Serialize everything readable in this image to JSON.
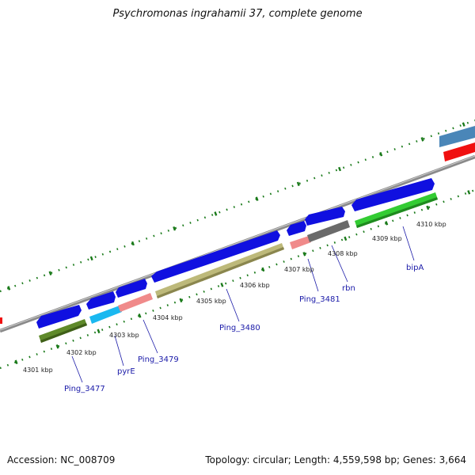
{
  "title": "Psychromonas ingrahamii 37, complete genome",
  "footer": {
    "accession": "Accession: NC_008709",
    "stats": "Topology: circular; Length: 4,559,598 bp; Genes: 3,664"
  },
  "kbp_labels": [
    "4301 kbp",
    "4302 kbp",
    "4303 kbp",
    "4304 kbp",
    "4305 kbp",
    "4306 kbp",
    "4307 kbp",
    "4308 kbp",
    "4309 kbp",
    "4310 kbp"
  ],
  "gene_labels": [
    "Ping_3477",
    "pyrE",
    "Ping_3479",
    "Ping_3480",
    "Ping_3481",
    "rbn",
    "bipA"
  ],
  "colors": {
    "cds": "#1010e0",
    "backbone": "#8a8a8a",
    "ticks": "#1a7a1a",
    "olive": "#5f8a2a",
    "cyan": "#1ab8f0",
    "pink": "#f08a8a",
    "khaki": "#bdb97a",
    "gray": "#6a6a6a",
    "green": "#33cc33",
    "steel": "#4a86b8",
    "red": "#f01010"
  }
}
